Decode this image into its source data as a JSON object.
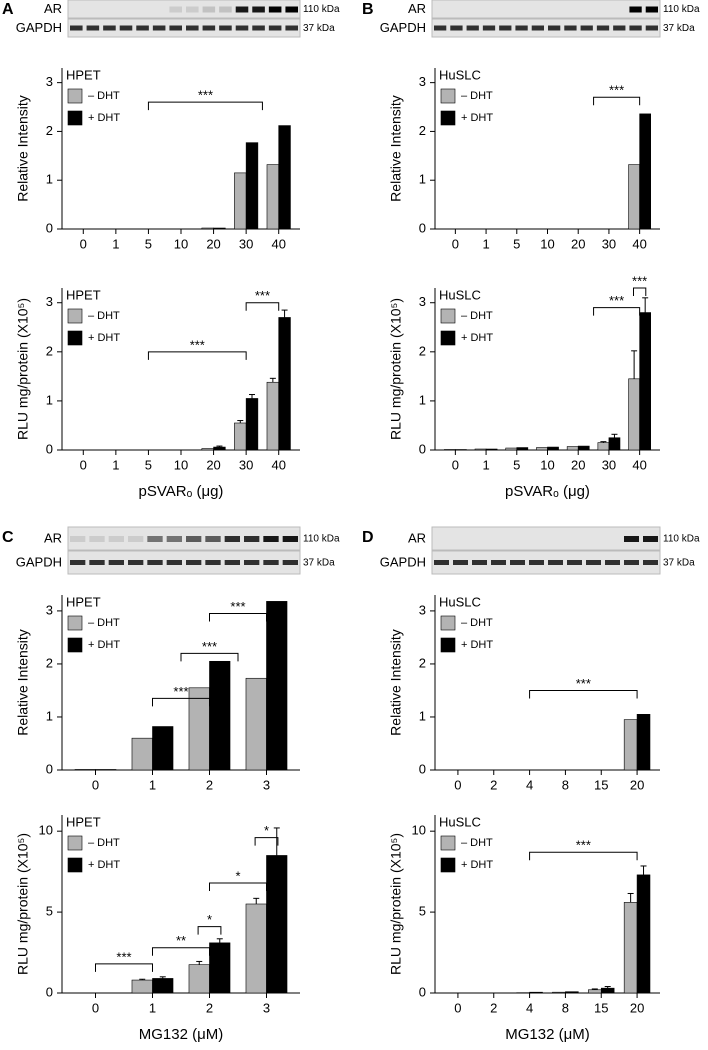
{
  "panels": [
    {
      "letter": "A",
      "blot_labels": [
        "AR",
        "GAPDH"
      ],
      "blot_sizes": [
        "110 kDa",
        "37 kDa"
      ]
    },
    {
      "letter": "B",
      "blot_labels": [
        "AR",
        "GAPDH"
      ],
      "blot_sizes": [
        "110 kDa",
        "37 kDa"
      ]
    },
    {
      "letter": "C",
      "blot_labels": [
        "AR",
        "GAPDH"
      ],
      "blot_sizes": [
        "110 kDa",
        "37 kDa"
      ]
    },
    {
      "letter": "D",
      "blot_labels": [
        "AR",
        "GAPDH"
      ],
      "blot_sizes": [
        "110 kDa",
        "37 kDa"
      ]
    }
  ],
  "chart_data": [
    {
      "type": "bar",
      "legend_title": "HPET",
      "ylabel": "Relative Intensity",
      "categories": [
        "0",
        "1",
        "5",
        "10",
        "20",
        "30",
        "40"
      ],
      "ylim": [
        0,
        3.3
      ],
      "yticks": [
        0,
        1,
        2,
        3
      ],
      "series": [
        {
          "name": "– DHT",
          "color": "#b3b3b3",
          "values": [
            0,
            0,
            0,
            0,
            0.02,
            1.15,
            1.32
          ]
        },
        {
          "name": "+ DHT",
          "color": "#000000",
          "values": [
            0,
            0,
            0,
            0,
            0.02,
            1.77,
            2.12
          ]
        }
      ],
      "annotations": [
        "***"
      ]
    },
    {
      "type": "bar",
      "legend_title": "HPET",
      "ylabel": "RLU mg/protein (X10⁵)",
      "xlabel": "pSVARₒ (μg)",
      "categories": [
        "0",
        "1",
        "5",
        "10",
        "20",
        "30",
        "40"
      ],
      "ylim": [
        0,
        3.3
      ],
      "yticks": [
        0,
        1,
        2,
        3
      ],
      "series": [
        {
          "name": "– DHT",
          "color": "#b3b3b3",
          "values": [
            0,
            0,
            0,
            0,
            0.03,
            0.55,
            1.38
          ],
          "errors": [
            0,
            0,
            0,
            0,
            0,
            0.05,
            0.08
          ]
        },
        {
          "name": "+ DHT",
          "color": "#000000",
          "values": [
            0,
            0,
            0,
            0,
            0.06,
            1.05,
            2.7
          ],
          "errors": [
            0,
            0,
            0,
            0,
            0.02,
            0.08,
            0.15
          ]
        }
      ],
      "annotations": [
        "***",
        "***"
      ]
    },
    {
      "type": "bar",
      "legend_title": "HuSLC",
      "ylabel": "Relative Intensity",
      "categories": [
        "0",
        "1",
        "5",
        "10",
        "20",
        "30",
        "40"
      ],
      "ylim": [
        0,
        3.3
      ],
      "yticks": [
        0,
        1,
        2,
        3
      ],
      "series": [
        {
          "name": "– DHT",
          "color": "#b3b3b3",
          "values": [
            0,
            0,
            0,
            0,
            0,
            0,
            1.32
          ]
        },
        {
          "name": "+ DHT",
          "color": "#000000",
          "values": [
            0,
            0,
            0,
            0,
            0,
            0,
            2.36
          ]
        }
      ],
      "annotations": [
        "***"
      ]
    },
    {
      "type": "bar",
      "legend_title": "HuSLC",
      "ylabel": "RLU mg/protein (X10⁵)",
      "xlabel": "pSVARₒ (μg)",
      "categories": [
        "0",
        "1",
        "5",
        "10",
        "20",
        "30",
        "40"
      ],
      "ylim": [
        0,
        3.3
      ],
      "yticks": [
        0,
        1,
        2,
        3
      ],
      "series": [
        {
          "name": "– DHT",
          "color": "#b3b3b3",
          "values": [
            0.01,
            0.02,
            0.04,
            0.05,
            0.07,
            0.15,
            1.45
          ],
          "errors": [
            0,
            0,
            0,
            0,
            0,
            0.02,
            0.57
          ]
        },
        {
          "name": "+ DHT",
          "color": "#000000",
          "values": [
            0.01,
            0.02,
            0.05,
            0.06,
            0.08,
            0.25,
            2.8
          ],
          "errors": [
            0,
            0,
            0,
            0,
            0,
            0.07,
            0.3
          ]
        }
      ],
      "annotations": [
        "***",
        "***"
      ]
    },
    {
      "type": "bar",
      "legend_title": "HPET",
      "ylabel": "Relative Intensity",
      "categories": [
        "0",
        "1",
        "2",
        "3"
      ],
      "ylim": [
        0,
        3.3
      ],
      "yticks": [
        0,
        1,
        2,
        3
      ],
      "series": [
        {
          "name": "– DHT",
          "color": "#b3b3b3",
          "values": [
            0.01,
            0.6,
            1.55,
            1.73
          ]
        },
        {
          "name": "+ DHT",
          "color": "#000000",
          "values": [
            0.01,
            0.82,
            2.05,
            3.18
          ]
        }
      ],
      "annotations": [
        "***",
        "***",
        "***"
      ]
    },
    {
      "type": "bar",
      "legend_title": "HPET",
      "ylabel": "RLU mg/protein (X10⁵)",
      "xlabel": "MG132 (μM)",
      "categories": [
        "0",
        "1",
        "2",
        "3"
      ],
      "ylim": [
        0,
        11
      ],
      "yticks": [
        0,
        5,
        10
      ],
      "series": [
        {
          "name": "– DHT",
          "color": "#b3b3b3",
          "values": [
            0,
            0.8,
            1.75,
            5.5
          ],
          "errors": [
            0,
            0.05,
            0.2,
            0.35
          ]
        },
        {
          "name": "+ DHT",
          "color": "#000000",
          "values": [
            0,
            0.9,
            3.1,
            8.5
          ],
          "errors": [
            0,
            0.1,
            0.25,
            1.7
          ]
        }
      ],
      "annotations": [
        "***",
        "**",
        "*",
        "*",
        "*"
      ]
    },
    {
      "type": "bar",
      "legend_title": "HuSLC",
      "ylabel": "Relative Intensity",
      "categories": [
        "0",
        "2",
        "4",
        "8",
        "15",
        "20"
      ],
      "ylim": [
        0,
        3.3
      ],
      "yticks": [
        0,
        1,
        2,
        3
      ],
      "series": [
        {
          "name": "– DHT",
          "color": "#b3b3b3",
          "values": [
            0,
            0,
            0,
            0,
            0,
            0.95
          ]
        },
        {
          "name": "+ DHT",
          "color": "#000000",
          "values": [
            0,
            0,
            0,
            0,
            0,
            1.05
          ]
        }
      ],
      "annotations": [
        "***"
      ]
    },
    {
      "type": "bar",
      "legend_title": "HuSLC",
      "ylabel": "RLU mg/protein (X10⁵)",
      "xlabel": "MG132 (μM)",
      "categories": [
        "0",
        "2",
        "4",
        "8",
        "15",
        "20"
      ],
      "ylim": [
        0,
        11
      ],
      "yticks": [
        0,
        5,
        10
      ],
      "series": [
        {
          "name": "– DHT",
          "color": "#b3b3b3",
          "values": [
            0,
            0,
            0.02,
            0.05,
            0.2,
            5.6
          ],
          "errors": [
            0,
            0,
            0,
            0,
            0.05,
            0.55
          ]
        },
        {
          "name": "+ DHT",
          "color": "#000000",
          "values": [
            0,
            0,
            0.05,
            0.08,
            0.3,
            7.3
          ],
          "errors": [
            0,
            0,
            0,
            0,
            0.1,
            0.55
          ]
        }
      ],
      "annotations": [
        "***"
      ]
    }
  ]
}
